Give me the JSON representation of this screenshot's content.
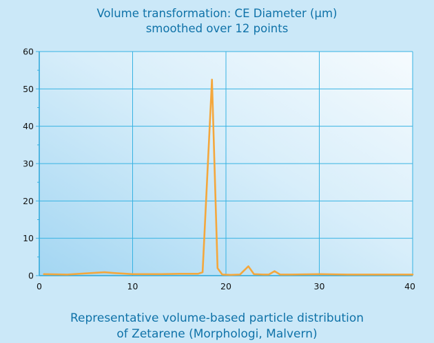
{
  "chart_data": {
    "type": "line",
    "title": "Volume transformation: CE Diameter (µm)",
    "subtitle": "smoothed over 12 points",
    "caption": [
      "Representative volume-based particle distribution",
      "of Zetarene (Morphologi, Malvern)"
    ],
    "xlabel": "",
    "ylabel": "",
    "xlim": [
      0,
      40
    ],
    "ylim": [
      0,
      60
    ],
    "x_ticks": [
      "0",
      "10",
      "20",
      "30",
      "40"
    ],
    "y_ticks": [
      "0",
      "10",
      "20",
      "30",
      "40",
      "50",
      "60"
    ],
    "grid": true,
    "series": [
      {
        "color": "#f4a73c",
        "points": [
          [
            0.5,
            0.4
          ],
          [
            3,
            0.3
          ],
          [
            5,
            0.6
          ],
          [
            7,
            0.9
          ],
          [
            8,
            0.7
          ],
          [
            10,
            0.4
          ],
          [
            13,
            0.4
          ],
          [
            15,
            0.5
          ],
          [
            16,
            0.5
          ],
          [
            17,
            0.5
          ],
          [
            17.5,
            0.9
          ],
          [
            18.5,
            52.5
          ],
          [
            19.1,
            2.0
          ],
          [
            19.6,
            0.3
          ],
          [
            20.5,
            0.2
          ],
          [
            21.5,
            0.3
          ],
          [
            22.4,
            2.5
          ],
          [
            23,
            0.4
          ],
          [
            24,
            0.3
          ],
          [
            24.6,
            0.3
          ],
          [
            25.2,
            1.2
          ],
          [
            25.8,
            0.3
          ],
          [
            27,
            0.3
          ],
          [
            30,
            0.4
          ],
          [
            33,
            0.3
          ],
          [
            36,
            0.3
          ],
          [
            40,
            0.3
          ]
        ]
      }
    ]
  }
}
